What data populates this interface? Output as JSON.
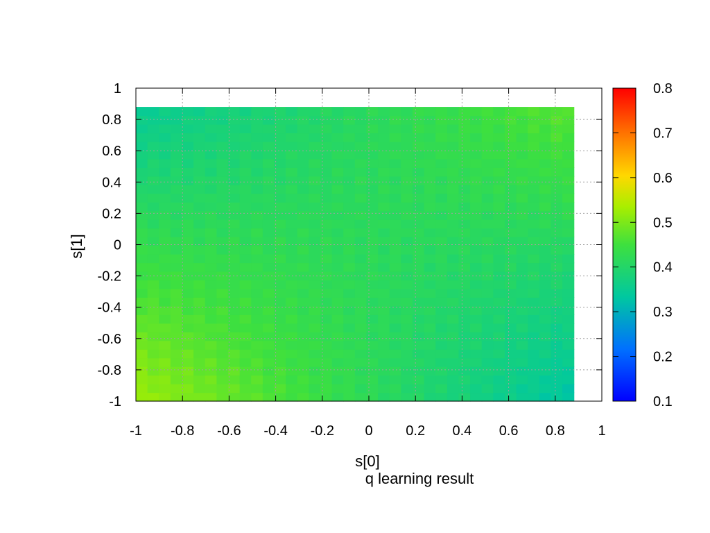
{
  "chart_data": {
    "type": "heatmap",
    "title": "q learning result",
    "xlabel": "s[0]",
    "ylabel": "s[1]",
    "xlim": [
      -1,
      1
    ],
    "ylim": [
      -1,
      1
    ],
    "grid": true,
    "x_ticks": [
      "-1",
      "-0.8",
      "-0.6",
      "-0.4",
      "-0.2",
      "0",
      "0.2",
      "0.4",
      "0.6",
      "0.8",
      "1"
    ],
    "y_ticks": [
      "1",
      "0.8",
      "0.6",
      "0.4",
      "0.2",
      "0",
      "-0.2",
      "-0.4",
      "-0.6",
      "-0.8",
      "-1"
    ],
    "colorbar": {
      "range": [
        0.1,
        0.8
      ],
      "ticks": [
        "0.8",
        "0.7",
        "0.6",
        "0.5",
        "0.4",
        "0.3",
        "0.2",
        "0.1"
      ],
      "palette": "rainbow"
    },
    "cells": {
      "nx": 38,
      "ny": 34,
      "x_range": [
        -1,
        0.88
      ],
      "y_range": [
        -1,
        0.88
      ],
      "corner_values": {
        "bottom_left": 0.52,
        "bottom_right": 0.33,
        "top_left": 0.35,
        "top_right": 0.47
      }
    }
  }
}
